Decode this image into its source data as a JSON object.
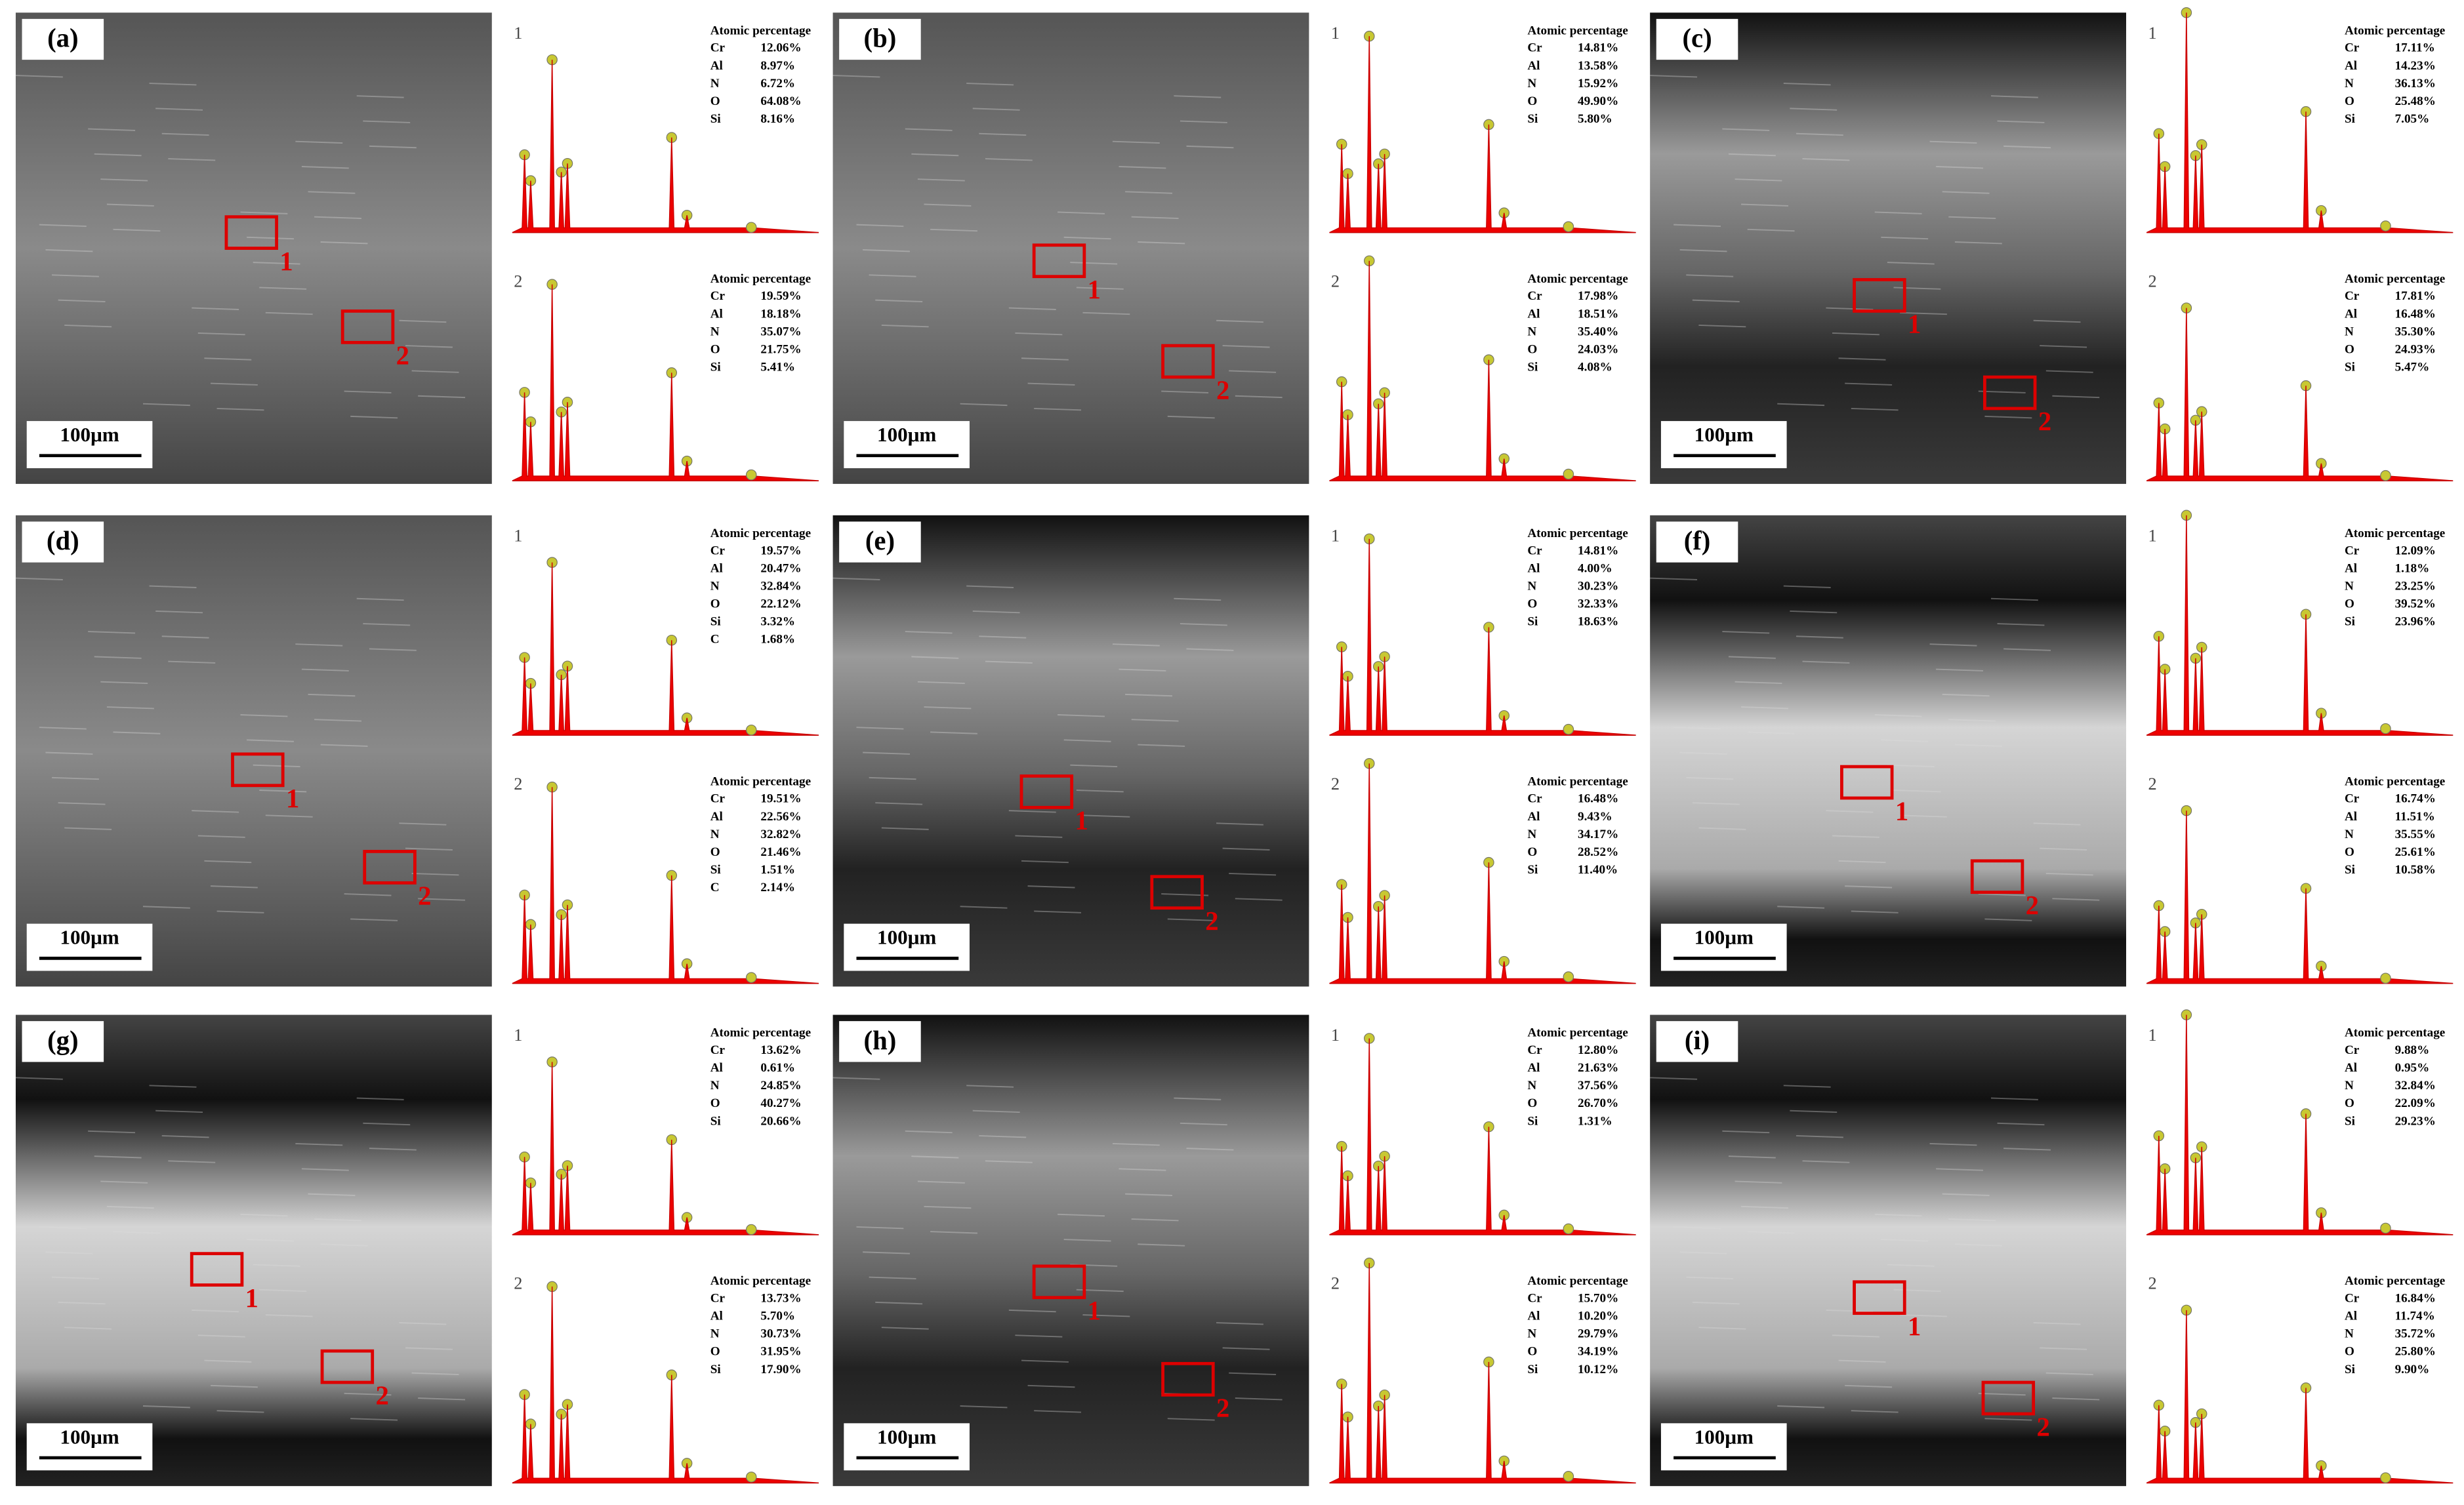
{
  "panels": [
    {
      "label": "(a)",
      "scale_bar": "100μm",
      "regions": [
        "1",
        "2"
      ],
      "spectra": [
        {
          "label": "1",
          "heading": "Atomic percentage",
          "rows": [
            [
              "Cr",
              "12.06%"
            ],
            [
              "Al",
              "8.97%"
            ],
            [
              "N",
              "6.72%"
            ],
            [
              "O",
              "64.08%"
            ],
            [
              "Si",
              "8.16%"
            ]
          ]
        },
        {
          "label": "2",
          "heading": "Atomic percentage",
          "rows": [
            [
              "Cr",
              "19.59%"
            ],
            [
              "Al",
              "18.18%"
            ],
            [
              "N",
              "35.07%"
            ],
            [
              "O",
              "21.75%"
            ],
            [
              "Si",
              "5.41%"
            ]
          ]
        }
      ]
    },
    {
      "label": "(b)",
      "scale_bar": "100μm",
      "regions": [
        "1",
        "2"
      ],
      "spectra": [
        {
          "label": "1",
          "heading": "Atomic percentage",
          "rows": [
            [
              "Cr",
              "14.81%"
            ],
            [
              "Al",
              "13.58%"
            ],
            [
              "N",
              "15.92%"
            ],
            [
              "O",
              "49.90%"
            ],
            [
              "Si",
              "5.80%"
            ]
          ]
        },
        {
          "label": "2",
          "heading": "Atomic percentage",
          "rows": [
            [
              "Cr",
              "17.98%"
            ],
            [
              "Al",
              "18.51%"
            ],
            [
              "N",
              "35.40%"
            ],
            [
              "O",
              "24.03%"
            ],
            [
              "Si",
              "4.08%"
            ]
          ]
        }
      ]
    },
    {
      "label": "(c)",
      "scale_bar": "100μm",
      "regions": [
        "1",
        "2"
      ],
      "spectra": [
        {
          "label": "1",
          "heading": "Atomic percentage",
          "rows": [
            [
              "Cr",
              "17.11%"
            ],
            [
              "Al",
              "14.23%"
            ],
            [
              "N",
              "36.13%"
            ],
            [
              "O",
              "25.48%"
            ],
            [
              "Si",
              "7.05%"
            ]
          ]
        },
        {
          "label": "2",
          "heading": "Atomic percentage",
          "rows": [
            [
              "Cr",
              "17.81%"
            ],
            [
              "Al",
              "16.48%"
            ],
            [
              "N",
              "35.30%"
            ],
            [
              "O",
              "24.93%"
            ],
            [
              "Si",
              "5.47%"
            ]
          ]
        }
      ]
    },
    {
      "label": "(d)",
      "scale_bar": "100μm",
      "regions": [
        "1",
        "2"
      ],
      "spectra": [
        {
          "label": "1",
          "heading": "Atomic percentage",
          "rows": [
            [
              "Cr",
              "19.57%"
            ],
            [
              "Al",
              "20.47%"
            ],
            [
              "N",
              "32.84%"
            ],
            [
              "O",
              "22.12%"
            ],
            [
              "Si",
              "3.32%"
            ],
            [
              "C",
              "1.68%"
            ]
          ]
        },
        {
          "label": "2",
          "heading": "Atomic percentage",
          "rows": [
            [
              "Cr",
              "19.51%"
            ],
            [
              "Al",
              "22.56%"
            ],
            [
              "N",
              "32.82%"
            ],
            [
              "O",
              "21.46%"
            ],
            [
              "Si",
              "1.51%"
            ],
            [
              "C",
              "2.14%"
            ]
          ]
        }
      ]
    },
    {
      "label": "(e)",
      "scale_bar": "100μm",
      "regions": [
        "1",
        "2"
      ],
      "spectra": [
        {
          "label": "1",
          "heading": "Atomic percentage",
          "rows": [
            [
              "Cr",
              "14.81%"
            ],
            [
              "Al",
              "4.00%"
            ],
            [
              "N",
              "30.23%"
            ],
            [
              "O",
              "32.33%"
            ],
            [
              "Si",
              "18.63%"
            ]
          ]
        },
        {
          "label": "2",
          "heading": "Atomic percentage",
          "rows": [
            [
              "Cr",
              "16.48%"
            ],
            [
              "Al",
              "9.43%"
            ],
            [
              "N",
              "34.17%"
            ],
            [
              "O",
              "28.52%"
            ],
            [
              "Si",
              "11.40%"
            ]
          ]
        }
      ]
    },
    {
      "label": "(f)",
      "scale_bar": "100μm",
      "regions": [
        "1",
        "2"
      ],
      "spectra": [
        {
          "label": "1",
          "heading": "Atomic percentage",
          "rows": [
            [
              "Cr",
              "12.09%"
            ],
            [
              "Al",
              "1.18%"
            ],
            [
              "N",
              "23.25%"
            ],
            [
              "O",
              "39.52%"
            ],
            [
              "Si",
              "23.96%"
            ]
          ]
        },
        {
          "label": "2",
          "heading": "Atomic percentage",
          "rows": [
            [
              "Cr",
              "16.74%"
            ],
            [
              "Al",
              "11.51%"
            ],
            [
              "N",
              "35.55%"
            ],
            [
              "O",
              "25.61%"
            ],
            [
              "Si",
              "10.58%"
            ]
          ]
        }
      ]
    },
    {
      "label": "(g)",
      "scale_bar": "100μm",
      "regions": [
        "1",
        "2"
      ],
      "spectra": [
        {
          "label": "1",
          "heading": "Atomic percentage",
          "rows": [
            [
              "Cr",
              "13.62%"
            ],
            [
              "Al",
              "0.61%"
            ],
            [
              "N",
              "24.85%"
            ],
            [
              "O",
              "40.27%"
            ],
            [
              "Si",
              "20.66%"
            ]
          ]
        },
        {
          "label": "2",
          "heading": "Atomic percentage",
          "rows": [
            [
              "Cr",
              "13.73%"
            ],
            [
              "Al",
              "5.70%"
            ],
            [
              "N",
              "30.73%"
            ],
            [
              "O",
              "31.95%"
            ],
            [
              "Si",
              "17.90%"
            ]
          ]
        }
      ]
    },
    {
      "label": "(h)",
      "scale_bar": "100μm",
      "regions": [
        "1",
        "2"
      ],
      "spectra": [
        {
          "label": "1",
          "heading": "Atomic percentage",
          "rows": [
            [
              "Cr",
              "12.80%"
            ],
            [
              "Al",
              "21.63%"
            ],
            [
              "N",
              "37.56%"
            ],
            [
              "O",
              "26.70%"
            ],
            [
              "Si",
              "1.31%"
            ]
          ]
        },
        {
          "label": "2",
          "heading": "Atomic percentage",
          "rows": [
            [
              "Cr",
              "15.70%"
            ],
            [
              "Al",
              "10.20%"
            ],
            [
              "N",
              "29.79%"
            ],
            [
              "O",
              "34.19%"
            ],
            [
              "Si",
              "10.12%"
            ]
          ]
        }
      ]
    },
    {
      "label": "(i)",
      "scale_bar": "100μm",
      "regions": [
        "1",
        "2"
      ],
      "spectra": [
        {
          "label": "1",
          "heading": "Atomic percentage",
          "rows": [
            [
              "Cr",
              "9.88%"
            ],
            [
              "Al",
              "0.95%"
            ],
            [
              "N",
              "32.84%"
            ],
            [
              "O",
              "22.09%"
            ],
            [
              "Si",
              "29.23%"
            ]
          ]
        },
        {
          "label": "2",
          "heading": "Atomic percentage",
          "rows": [
            [
              "Cr",
              "16.84%"
            ],
            [
              "Al",
              "11.74%"
            ],
            [
              "N",
              "35.72%"
            ],
            [
              "O",
              "25.80%"
            ],
            [
              "Si",
              "9.90%"
            ]
          ]
        }
      ]
    }
  ]
}
